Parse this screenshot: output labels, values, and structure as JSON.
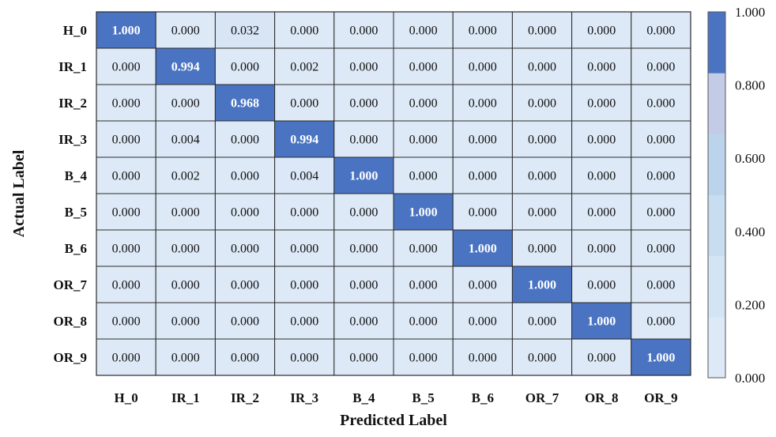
{
  "chart_data": {
    "type": "heatmap",
    "xlabel": "Predicted Label",
    "ylabel": "Actual Label",
    "x_categories": [
      "H_0",
      "IR_1",
      "IR_2",
      "IR_3",
      "B_4",
      "B_5",
      "B_6",
      "OR_7",
      "OR_8",
      "OR_9"
    ],
    "y_categories": [
      "H_0",
      "IR_1",
      "IR_2",
      "IR_3",
      "B_4",
      "B_5",
      "B_6",
      "OR_7",
      "OR_8",
      "OR_9"
    ],
    "values": [
      [
        1.0,
        0.0,
        0.032,
        0.0,
        0.0,
        0.0,
        0.0,
        0.0,
        0.0,
        0.0
      ],
      [
        0.0,
        0.994,
        0.0,
        0.002,
        0.0,
        0.0,
        0.0,
        0.0,
        0.0,
        0.0
      ],
      [
        0.0,
        0.0,
        0.968,
        0.0,
        0.0,
        0.0,
        0.0,
        0.0,
        0.0,
        0.0
      ],
      [
        0.0,
        0.004,
        0.0,
        0.994,
        0.0,
        0.0,
        0.0,
        0.0,
        0.0,
        0.0
      ],
      [
        0.0,
        0.002,
        0.0,
        0.004,
        1.0,
        0.0,
        0.0,
        0.0,
        0.0,
        0.0
      ],
      [
        0.0,
        0.0,
        0.0,
        0.0,
        0.0,
        1.0,
        0.0,
        0.0,
        0.0,
        0.0
      ],
      [
        0.0,
        0.0,
        0.0,
        0.0,
        0.0,
        0.0,
        1.0,
        0.0,
        0.0,
        0.0
      ],
      [
        0.0,
        0.0,
        0.0,
        0.0,
        0.0,
        0.0,
        0.0,
        1.0,
        0.0,
        0.0
      ],
      [
        0.0,
        0.0,
        0.0,
        0.0,
        0.0,
        0.0,
        0.0,
        0.0,
        1.0,
        0.0
      ],
      [
        0.0,
        0.0,
        0.0,
        0.0,
        0.0,
        0.0,
        0.0,
        0.0,
        0.0,
        1.0
      ]
    ],
    "value_range": [
      0,
      1
    ],
    "colorbar": {
      "ticks": [
        "0.000",
        "0.200",
        "0.400",
        "0.600",
        "0.800",
        "1.000"
      ],
      "levels": [
        "#dde9f7",
        "#d3e4f5",
        "#c9ddf1",
        "#bcd3ec",
        "#c3cbe6",
        "#4a74c2"
      ]
    },
    "colors": {
      "high": "#4a74c2",
      "low": "#dde9f7",
      "grid": "#2a2a2a"
    }
  }
}
